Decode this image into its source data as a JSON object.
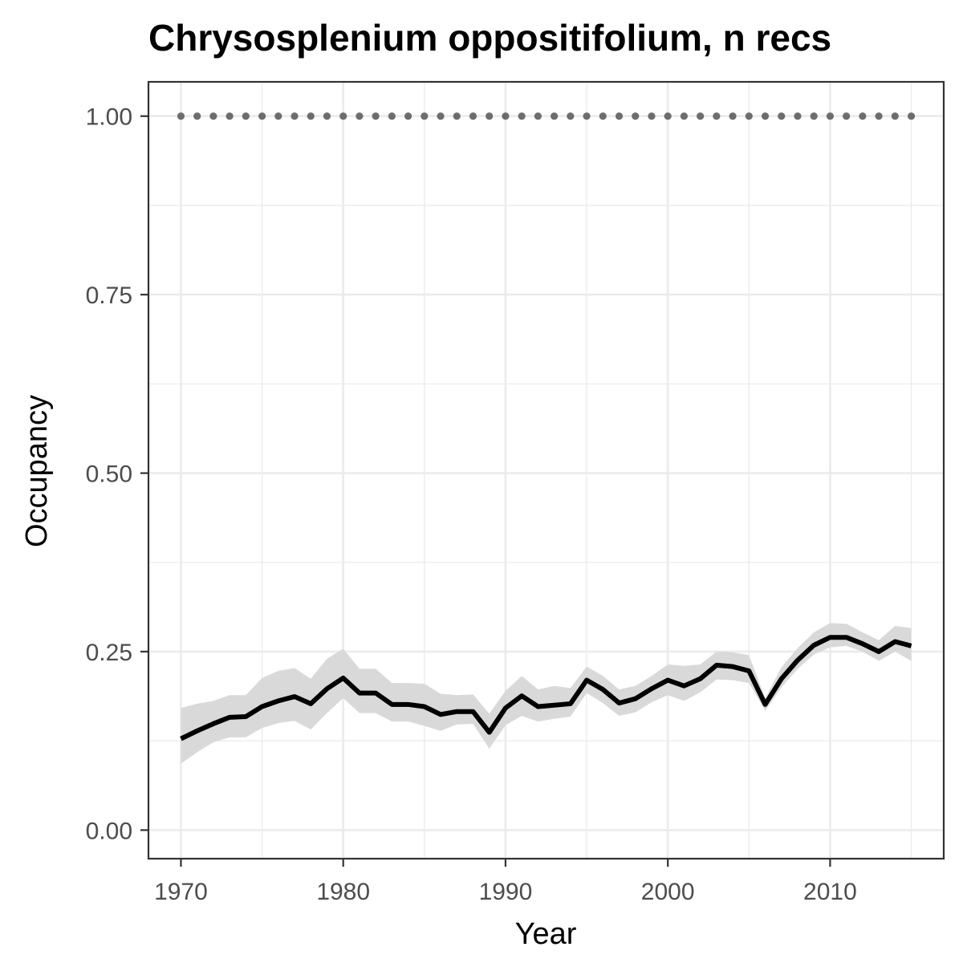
{
  "chart_data": {
    "type": "line",
    "title": "Chrysosplenium oppositifolium, n recs",
    "xlabel": "Year",
    "ylabel": "Occupancy",
    "xlim": [
      1968,
      2017
    ],
    "ylim": [
      -0.04,
      1.048
    ],
    "x_ticks": [
      1970,
      1980,
      1990,
      2000,
      2010
    ],
    "x_tick_labels": [
      "1970",
      "1980",
      "1990",
      "2000",
      "2010"
    ],
    "y_ticks": [
      0.0,
      0.25,
      0.5,
      0.75,
      1.0
    ],
    "y_tick_labels": [
      "0.00",
      "0.25",
      "0.50",
      "0.75",
      "1.00"
    ],
    "grid": true,
    "legend": "none",
    "x": [
      1970,
      1971,
      1972,
      1973,
      1974,
      1975,
      1976,
      1977,
      1978,
      1979,
      1980,
      1981,
      1982,
      1983,
      1984,
      1985,
      1986,
      1987,
      1988,
      1989,
      1990,
      1991,
      1992,
      1993,
      1994,
      1995,
      1996,
      1997,
      1998,
      1999,
      2000,
      2001,
      2002,
      2003,
      2004,
      2005,
      2006,
      2007,
      2008,
      2009,
      2010,
      2011,
      2012,
      2013,
      2014,
      2015
    ],
    "series": [
      {
        "role": "occupancy",
        "color": "#000000",
        "values": [
          0.128,
          0.139,
          0.149,
          0.158,
          0.159,
          0.173,
          0.181,
          0.187,
          0.177,
          0.198,
          0.213,
          0.192,
          0.192,
          0.176,
          0.176,
          0.173,
          0.162,
          0.166,
          0.166,
          0.137,
          0.171,
          0.188,
          0.173,
          0.175,
          0.177,
          0.21,
          0.197,
          0.178,
          0.184,
          0.198,
          0.21,
          0.202,
          0.212,
          0.231,
          0.229,
          0.223,
          0.176,
          0.212,
          0.238,
          0.259,
          0.27,
          0.27,
          0.261,
          0.25,
          0.264,
          0.258
        ],
        "lower": [
          0.093,
          0.109,
          0.123,
          0.13,
          0.13,
          0.143,
          0.15,
          0.153,
          0.141,
          0.164,
          0.185,
          0.164,
          0.164,
          0.152,
          0.152,
          0.146,
          0.139,
          0.148,
          0.149,
          0.114,
          0.147,
          0.16,
          0.152,
          0.156,
          0.159,
          0.192,
          0.178,
          0.16,
          0.165,
          0.179,
          0.189,
          0.181,
          0.193,
          0.211,
          0.21,
          0.206,
          0.167,
          0.2,
          0.226,
          0.246,
          0.256,
          0.258,
          0.25,
          0.237,
          0.25,
          0.237
        ],
        "upper": [
          0.171,
          0.177,
          0.181,
          0.189,
          0.189,
          0.213,
          0.223,
          0.227,
          0.212,
          0.24,
          0.254,
          0.226,
          0.226,
          0.206,
          0.206,
          0.205,
          0.191,
          0.189,
          0.19,
          0.163,
          0.195,
          0.216,
          0.197,
          0.202,
          0.199,
          0.229,
          0.216,
          0.197,
          0.202,
          0.216,
          0.232,
          0.23,
          0.232,
          0.25,
          0.249,
          0.245,
          0.185,
          0.228,
          0.255,
          0.277,
          0.29,
          0.289,
          0.277,
          0.266,
          0.286,
          0.283
        ]
      },
      {
        "role": "reference",
        "color": "#6d6d6d",
        "values": [
          1,
          1,
          1,
          1,
          1,
          1,
          1,
          1,
          1,
          1,
          1,
          1,
          1,
          1,
          1,
          1,
          1,
          1,
          1,
          1,
          1,
          1,
          1,
          1,
          1,
          1,
          1,
          1,
          1,
          1,
          1,
          1,
          1,
          1,
          1,
          1,
          1,
          1,
          1,
          1,
          1,
          1,
          1,
          1,
          1,
          1
        ]
      }
    ],
    "colors": {
      "ribbon": "#d9d9d9",
      "line": "#000000",
      "dots": "#6d6d6d",
      "grid": "#ebebeb",
      "panel_border": "#333333",
      "tick_text": "#4d4d4d"
    }
  }
}
